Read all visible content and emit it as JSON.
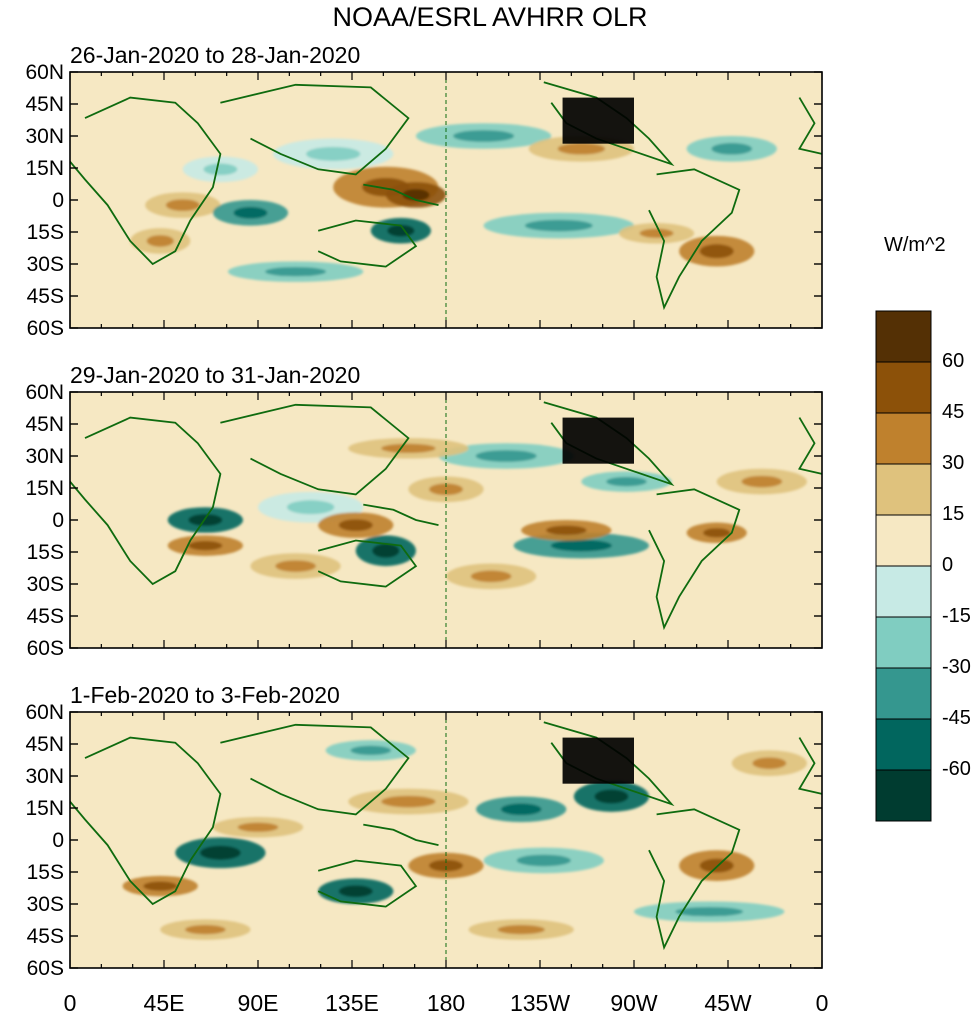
{
  "title": "NOAA/ESRL AVHRR OLR",
  "units": "W/m^2",
  "panels": [
    {
      "label": "26-Jan-2020 to 28-Jan-2020"
    },
    {
      "label": "29-Jan-2020 to 31-Jan-2020"
    },
    {
      "label": "1-Feb-2020 to 3-Feb-2020"
    }
  ],
  "lat_ticks": [
    "60N",
    "45N",
    "30N",
    "15N",
    "0",
    "15S",
    "30S",
    "45S",
    "60S"
  ],
  "lon_ticks": [
    "0",
    "45E",
    "90E",
    "135E",
    "180",
    "135W",
    "90W",
    "45W",
    "0"
  ],
  "colorbar": {
    "labels": [
      "60",
      "45",
      "30",
      "15",
      "0",
      "-15",
      "-30",
      "-45",
      "-60"
    ],
    "colors": [
      "#543005",
      "#8c5109",
      "#bf812d",
      "#dfc27d",
      "#f6e8c3",
      "#c7eae5",
      "#80cdc1",
      "#35978f",
      "#01665e",
      "#003c30"
    ]
  },
  "colors": {
    "coast": "#0f6b0f",
    "background": "#f6e8c3"
  }
}
